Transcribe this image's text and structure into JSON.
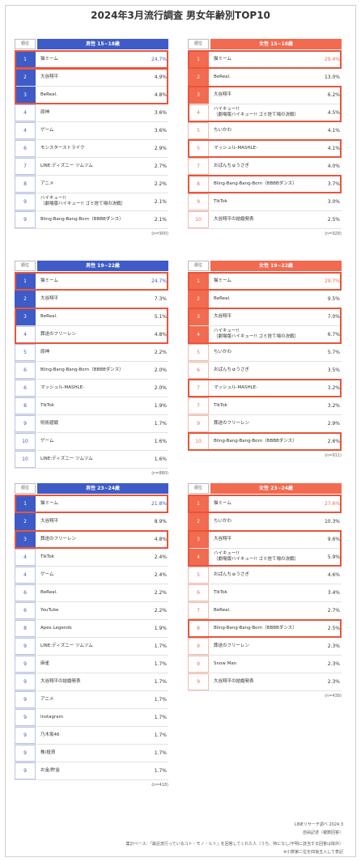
{
  "title": "2024年3月流行調査 男女年齢別TOP10",
  "rank_header": "順位",
  "chart_data": [
    {
      "type": "table",
      "group": "男性 15~18歳",
      "gender": "male",
      "n": "(n=900)",
      "rows": [
        {
          "rank": "1",
          "item": "猫ミーム",
          "value": "24.7%",
          "hl": true
        },
        {
          "rank": "2",
          "item": "大谷翔平",
          "value": "4.9%",
          "hl": true
        },
        {
          "rank": "3",
          "item": "BeReal.",
          "value": "4.8%",
          "hl": true
        },
        {
          "rank": "4",
          "item": "原神",
          "value": "3.6%",
          "hl": false
        },
        {
          "rank": "4",
          "item": "ゲーム",
          "value": "3.6%",
          "hl": false
        },
        {
          "rank": "6",
          "item": "モンスターストライク",
          "value": "2.9%",
          "hl": false
        },
        {
          "rank": "7",
          "item": "LINE:ディズニー ツムツム",
          "value": "2.7%",
          "hl": false
        },
        {
          "rank": "8",
          "item": "アニメ",
          "value": "2.2%",
          "hl": false
        },
        {
          "rank": "9",
          "item": "ハイキュー!!\n（劇場版ハイキュー!! ゴミ捨て場の決戦）",
          "value": "2.1%",
          "hl": false
        },
        {
          "rank": "9",
          "item": "Bling-Bang-Bang-Born（BBBBダンス）",
          "value": "2.1%",
          "hl": false
        }
      ],
      "boxes": [
        [
          0,
          0
        ],
        [
          1,
          2
        ]
      ]
    },
    {
      "type": "table",
      "group": "女性 15~18歳",
      "gender": "female",
      "n": "(n=928)",
      "rows": [
        {
          "rank": "1",
          "item": "猫ミーム",
          "value": "29.4%",
          "hl": true
        },
        {
          "rank": "2",
          "item": "BeReal.",
          "value": "13.0%",
          "hl": true
        },
        {
          "rank": "3",
          "item": "大谷翔平",
          "value": "6.2%",
          "hl": true
        },
        {
          "rank": "4",
          "item": "ハイキュー!!\n（劇場版ハイキュー!! ゴミ捨て場の決戦）",
          "value": "4.5%",
          "hl": false
        },
        {
          "rank": "5",
          "item": "ちいかわ",
          "value": "4.1%",
          "hl": false
        },
        {
          "rank": "5",
          "item": "マッシュル-MASHLE-",
          "value": "4.1%",
          "hl": false
        },
        {
          "rank": "7",
          "item": "おぱんちゅうさぎ",
          "value": "4.0%",
          "hl": false
        },
        {
          "rank": "8",
          "item": "Bling-Bang-Bang-Born（BBBBダンス）",
          "value": "3.7%",
          "hl": false
        },
        {
          "rank": "9",
          "item": "TikTok",
          "value": "3.0%",
          "hl": false
        },
        {
          "rank": "10",
          "item": "大谷翔平の結婚発表",
          "value": "2.5%",
          "hl": false
        }
      ],
      "boxes": [
        [
          0,
          0
        ],
        [
          2,
          3
        ],
        [
          5,
          5
        ],
        [
          7,
          7
        ]
      ]
    },
    {
      "type": "table",
      "group": "男性 19~22歳",
      "gender": "male",
      "n": "(n=880)",
      "rows": [
        {
          "rank": "1",
          "item": "猫ミーム",
          "value": "24.7%",
          "hl": true
        },
        {
          "rank": "2",
          "item": "大谷翔平",
          "value": "7.3%",
          "hl": true
        },
        {
          "rank": "3",
          "item": "BeReal.",
          "value": "5.1%",
          "hl": true
        },
        {
          "rank": "4",
          "item": "葬送のフリーレン",
          "value": "4.8%",
          "hl": false
        },
        {
          "rank": "5",
          "item": "原神",
          "value": "2.2%",
          "hl": false
        },
        {
          "rank": "6",
          "item": "Bling-Bang-Bang-Born（BBBBダンス）",
          "value": "2.0%",
          "hl": false
        },
        {
          "rank": "6",
          "item": "マッシュル-MASHLE-",
          "value": "2.0%",
          "hl": false
        },
        {
          "rank": "8",
          "item": "TikTok",
          "value": "1.9%",
          "hl": false
        },
        {
          "rank": "9",
          "item": "呪術廻戦",
          "value": "1.7%",
          "hl": false
        },
        {
          "rank": "10",
          "item": "ゲーム",
          "value": "1.6%",
          "hl": false
        },
        {
          "rank": "10",
          "item": "LINE:ディズニー ツムツム",
          "value": "1.6%",
          "hl": false
        }
      ],
      "boxes": [
        [
          0,
          0
        ],
        [
          2,
          3
        ]
      ]
    },
    {
      "type": "table",
      "group": "女性 19~22歳",
      "gender": "female",
      "n": "(n=911)",
      "rows": [
        {
          "rank": "1",
          "item": "猫ミーム",
          "value": "29.7%",
          "hl": true
        },
        {
          "rank": "2",
          "item": "BeReal.",
          "value": "9.5%",
          "hl": true
        },
        {
          "rank": "3",
          "item": "大谷翔平",
          "value": "7.0%",
          "hl": true
        },
        {
          "rank": "4",
          "item": "ハイキュー!!\n（劇場版ハイキュー!! ゴミ捨て場の決戦）",
          "value": "6.7%",
          "hl": true
        },
        {
          "rank": "5",
          "item": "ちいかわ",
          "value": "5.7%",
          "hl": false
        },
        {
          "rank": "6",
          "item": "おぱんちゅうさぎ",
          "value": "3.5%",
          "hl": false
        },
        {
          "rank": "7",
          "item": "マッシュル-MASHLE-",
          "value": "3.2%",
          "hl": false
        },
        {
          "rank": "7",
          "item": "TikTok",
          "value": "3.2%",
          "hl": false
        },
        {
          "rank": "9",
          "item": "葬送のフリーレン",
          "value": "2.9%",
          "hl": false
        },
        {
          "rank": "10",
          "item": "Bling-Bang-Bang-Born（BBBBダンス）",
          "value": "2.6%",
          "hl": false
        }
      ],
      "boxes": [
        [
          0,
          0
        ],
        [
          2,
          3
        ],
        [
          6,
          6
        ],
        [
          9,
          9
        ]
      ]
    },
    {
      "type": "table",
      "group": "男性 23~24歳",
      "gender": "male",
      "n": "(n=418)",
      "rows": [
        {
          "rank": "1",
          "item": "猫ミーム",
          "value": "21.8%",
          "hl": true
        },
        {
          "rank": "2",
          "item": "大谷翔平",
          "value": "8.9%",
          "hl": true
        },
        {
          "rank": "3",
          "item": "葬送のフリーレン",
          "value": "4.8%",
          "hl": true
        },
        {
          "rank": "4",
          "item": "TikTok",
          "value": "2.4%",
          "hl": false
        },
        {
          "rank": "4",
          "item": "ゲーム",
          "value": "2.4%",
          "hl": false
        },
        {
          "rank": "6",
          "item": "BeReal.",
          "value": "2.2%",
          "hl": false
        },
        {
          "rank": "6",
          "item": "YouTube",
          "value": "2.2%",
          "hl": false
        },
        {
          "rank": "8",
          "item": "Apex Legends",
          "value": "1.9%",
          "hl": false
        },
        {
          "rank": "9",
          "item": "LINE:ディズニー ツムツム",
          "value": "1.7%",
          "hl": false
        },
        {
          "rank": "9",
          "item": "麻雀",
          "value": "1.7%",
          "hl": false
        },
        {
          "rank": "9",
          "item": "大谷翔平の結婚発表",
          "value": "1.7%",
          "hl": false
        },
        {
          "rank": "9",
          "item": "アニメ",
          "value": "1.7%",
          "hl": false
        },
        {
          "rank": "9",
          "item": "Instagram",
          "value": "1.7%",
          "hl": false
        },
        {
          "rank": "9",
          "item": "乃木坂46",
          "value": "1.7%",
          "hl": false
        },
        {
          "rank": "9",
          "item": "株/投資",
          "value": "1.7%",
          "hl": false
        },
        {
          "rank": "9",
          "item": "お金/貯金",
          "value": "1.7%",
          "hl": false
        }
      ],
      "boxes": [
        [
          0,
          0
        ],
        [
          2,
          2
        ]
      ]
    },
    {
      "type": "table",
      "group": "女性 23~24歳",
      "gender": "female",
      "n": "(n=438)",
      "rows": [
        {
          "rank": "1",
          "item": "猫ミーム",
          "value": "27.6%",
          "hl": true
        },
        {
          "rank": "2",
          "item": "ちいかわ",
          "value": "10.3%",
          "hl": true
        },
        {
          "rank": "3",
          "item": "大谷翔平",
          "value": "9.6%",
          "hl": true
        },
        {
          "rank": "4",
          "item": "ハイキュー!!\n（劇場版ハイキュー!! ゴミ捨て場の決戦）",
          "value": "5.9%",
          "hl": true
        },
        {
          "rank": "5",
          "item": "おぱんちゅうさぎ",
          "value": "4.6%",
          "hl": false
        },
        {
          "rank": "6",
          "item": "TikTok",
          "value": "3.4%",
          "hl": false
        },
        {
          "rank": "7",
          "item": "BeReal.",
          "value": "2.7%",
          "hl": false
        },
        {
          "rank": "8",
          "item": "Bling-Bang-Bang-Born（BBBBダンス）",
          "value": "2.5%",
          "hl": false
        },
        {
          "rank": "9",
          "item": "葬送のフリーレン",
          "value": "2.3%",
          "hl": false
        },
        {
          "rank": "9",
          "item": "Snow Man",
          "value": "2.3%",
          "hl": false
        },
        {
          "rank": "9",
          "item": "大谷翔平の結婚発表",
          "value": "2.3%",
          "hl": false
        }
      ],
      "boxes": [
        [
          0,
          0
        ],
        [
          2,
          3
        ],
        [
          7,
          7
        ]
      ]
    }
  ],
  "footer": {
    "source": "LINEリサーチ調べ 2024.3",
    "method": "自由記述（複数回答）",
    "base": "集計ベース：「最近流行っているコト・モノ・ヒト」を回答してくれた人（うち、特になし/不明に該当する回答は除外）",
    "note": "※小数第二位を四捨五入して表記"
  },
  "colors": {
    "male": "#3e5bc7",
    "female": "#f26a4f",
    "box": "#e8553c"
  }
}
